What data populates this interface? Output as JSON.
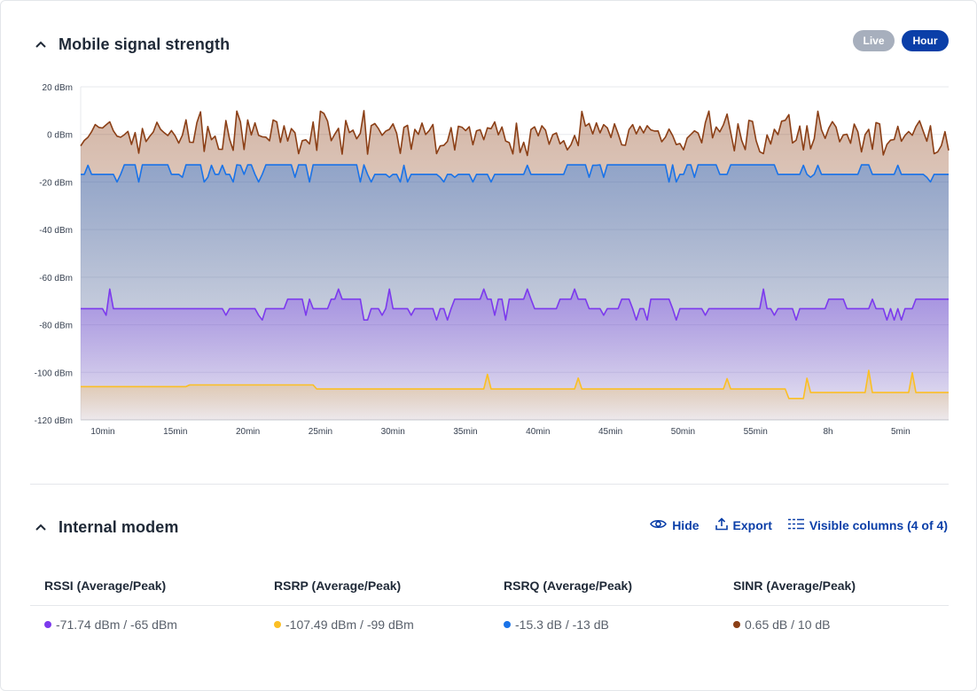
{
  "signal_section": {
    "title": "Mobile signal strength",
    "toggle_live": "Live",
    "toggle_hour": "Hour"
  },
  "chart_data": {
    "type": "area",
    "title": "Mobile signal strength",
    "ylim": [
      -120,
      20
    ],
    "y_ticks": [
      "20 dBm",
      "0 dBm",
      "-20 dBm",
      "-40 dBm",
      "-60 dBm",
      "-80 dBm",
      "-100 dBm",
      "-120 dBm"
    ],
    "x_ticks": [
      "10min",
      "15min",
      "20min",
      "25min",
      "30min",
      "35min",
      "40min",
      "45min",
      "50min",
      "55min",
      "8h",
      "5min"
    ],
    "grid": true,
    "series": [
      {
        "name": "SINR",
        "color": "#8b3f16",
        "avg": 0.65,
        "peak": 10,
        "low": -9,
        "spread": "high"
      },
      {
        "name": "RSRQ",
        "color": "#1a73e8",
        "avg": -15.3,
        "peak": -13,
        "low": -20,
        "spread": "steps"
      },
      {
        "name": "RSSI",
        "color": "#7c3aed",
        "avg": -71.74,
        "peak": -65,
        "low": -78,
        "spread": "steps"
      },
      {
        "name": "RSRP",
        "color": "#fbbf24",
        "avg": -107.49,
        "peak": -99,
        "low": -111,
        "spread": "spikes"
      }
    ]
  },
  "modem_section": {
    "title": "Internal modem",
    "hide_label": "Hide",
    "export_label": "Export",
    "columns_label": "Visible columns (4 of 4)"
  },
  "table": {
    "headers": [
      "RSSI (Average/Peak)",
      "RSRP (Average/Peak)",
      "RSRQ (Average/Peak)",
      "SINR (Average/Peak)"
    ],
    "values": [
      "-71.74 dBm / -65 dBm",
      "-107.49 dBm / -99 dBm",
      "-15.3 dB / -13 dB",
      "0.65 dB / 10 dB"
    ],
    "dot_colors": [
      "#7c3aed",
      "#fbbf24",
      "#1a73e8",
      "#8b3f16"
    ]
  }
}
